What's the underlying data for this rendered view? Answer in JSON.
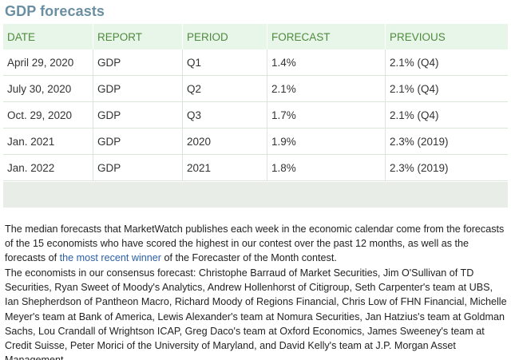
{
  "title": "GDP forecasts",
  "table": {
    "headers": [
      "DATE",
      "REPORT",
      "PERIOD",
      "FORECAST",
      "PREVIOUS"
    ],
    "rows": [
      [
        "April 29, 2020",
        "GDP",
        "Q1",
        "1.4%",
        "2.1% (Q4)"
      ],
      [
        "July 30, 2020",
        "GDP",
        "Q2",
        "2.1%",
        "2.1% (Q4)"
      ],
      [
        "Oct. 29, 2020",
        "GDP",
        "Q3",
        "1.7%",
        "2.1% (Q4)"
      ],
      [
        "Jan. 2021",
        "GDP",
        "2020",
        "1.9%",
        "2.3% (2019)"
      ],
      [
        "Jan. 2022",
        "GDP",
        "2021",
        "1.8%",
        "2.3% (2019)"
      ]
    ]
  },
  "paragraph1": {
    "before_link": "The median forecasts that MarketWatch publishes each week in the economic calendar come from the forecasts of the 15 economists who have scored the highest in our contest over the past 12 months, as well as the forecasts of",
    "link": "the most recent winner",
    "after_link": "of the Forecaster of the Month contest."
  },
  "paragraph2": "The economists in our consensus forecast: Christophe Barraud of Market Securities, Jim O'Sullivan of TD Securities, Ryan Sweet of Moody's Analytics, Andrew Hollenhorst of Citigroup, Seth Carpenter's team at UBS, Ian Shepherdson of Pantheon Macro, Richard Moody of Regions Financial, Chris Low of FHN Financial, Michelle Meyer's team at Bank of America, Lewis Alexander's team at Nomura Securities, Jan Hatzius's team at Goldman Sachs, Lou Crandall of Wrightson ICAP, Greg Daco's team at Oxford Economics, James Sweeney's team at Credit Suisse, Peter Morici of the University of Maryland, and David Kelly's team at J.P. Morgan Asset Management."
}
